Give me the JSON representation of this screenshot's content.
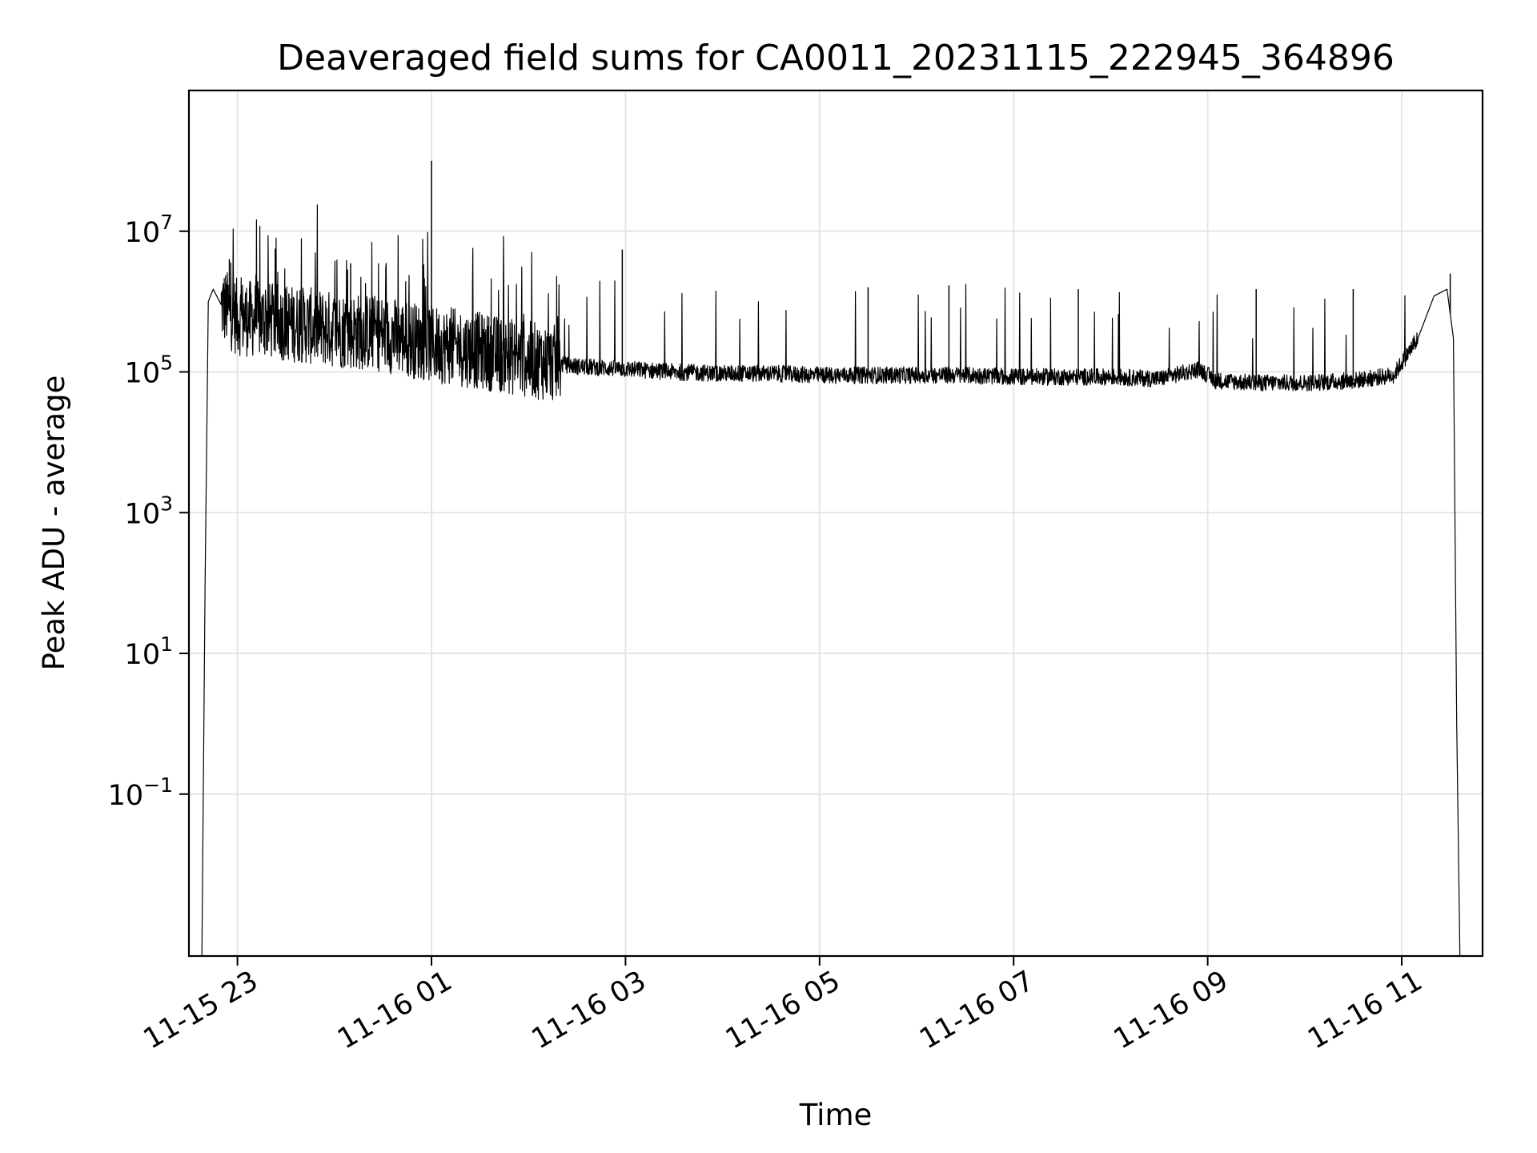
{
  "chart_data": {
    "type": "line",
    "title": "Deaveraged field sums for CA0011_20231115_222945_364896",
    "xlabel": "Time",
    "ylabel": "Peak ADU - average",
    "yscale": "log",
    "ylim": [
      0.0005,
      1000000000
    ],
    "xlim": [
      "2023-11-15 22:30",
      "2023-11-16 11:50"
    ],
    "grid": true,
    "line_color": "#000000",
    "grid_color": "#e5e5e5",
    "x_ticks": [
      {
        "value": "2023-11-15 23:00",
        "label": "11-15 23"
      },
      {
        "value": "2023-11-16 01:00",
        "label": "11-16 01"
      },
      {
        "value": "2023-11-16 03:00",
        "label": "11-16 03"
      },
      {
        "value": "2023-11-16 05:00",
        "label": "11-16 05"
      },
      {
        "value": "2023-11-16 07:00",
        "label": "11-16 07"
      },
      {
        "value": "2023-11-16 09:00",
        "label": "11-16 09"
      },
      {
        "value": "2023-11-16 11:00",
        "label": "11-16 11"
      }
    ],
    "y_ticks": [
      {
        "value": 0.1,
        "base": "10",
        "exp": "−1"
      },
      {
        "value": 10,
        "base": "10",
        "exp": "1"
      },
      {
        "value": 1000,
        "base": "10",
        "exp": "3"
      },
      {
        "value": 100000,
        "base": "10",
        "exp": "5"
      },
      {
        "value": 10000000,
        "base": "10",
        "exp": "7"
      }
    ],
    "series": [
      {
        "x": [
          "2023-11-15 22:38",
          "2023-11-15 22:40",
          "2023-11-15 22:42",
          "2023-11-15 22:45",
          "2023-11-15 22:50",
          "2023-11-15 23:00",
          "2023-11-15 23:30",
          "2023-11-16 00:00",
          "2023-11-16 00:30",
          "2023-11-16 01:00",
          "2023-11-16 01:30",
          "2023-11-16 02:00",
          "2023-11-16 02:30",
          "2023-11-16 03:00",
          "2023-11-16 03:30",
          "2023-11-16 04:00",
          "2023-11-16 04:30",
          "2023-11-16 05:00",
          "2023-11-16 05:30",
          "2023-11-16 06:00",
          "2023-11-16 06:30",
          "2023-11-16 07:00",
          "2023-11-16 07:30",
          "2023-11-16 08:00",
          "2023-11-16 08:30",
          "2023-11-16 08:55",
          "2023-11-16 09:05",
          "2023-11-16 09:30",
          "2023-11-16 10:00",
          "2023-11-16 10:30",
          "2023-11-16 10:55",
          "2023-11-16 11:10",
          "2023-11-16 11:20",
          "2023-11-16 11:28",
          "2023-11-16 11:32",
          "2023-11-16 11:34",
          "2023-11-16 11:36"
        ],
        "y": [
          0.0005,
          100,
          1000000,
          1500000,
          900000,
          600000,
          500000,
          400000,
          350000,
          250000,
          200000,
          150000,
          120000,
          110000,
          100000,
          95000,
          95000,
          90000,
          90000,
          90000,
          90000,
          85000,
          85000,
          85000,
          80000,
          110000,
          75000,
          70000,
          70000,
          75000,
          90000,
          300000,
          1200000,
          1500000,
          300000,
          1,
          0.0005
        ]
      }
    ],
    "spikes": [
      {
        "x": "2023-11-15 22:55",
        "y": 4000000
      },
      {
        "x": "2023-11-16 00:10",
        "y": 3500000
      },
      {
        "x": "2023-11-16 01:00",
        "y": 100000000
      },
      {
        "x": "2023-11-16 02:58",
        "y": 5500000
      },
      {
        "x": "2023-11-16 05:30",
        "y": 1600000
      },
      {
        "x": "2023-11-16 06:20",
        "y": 1700000
      },
      {
        "x": "2023-11-16 07:40",
        "y": 1500000
      },
      {
        "x": "2023-11-16 09:30",
        "y": 1500000
      },
      {
        "x": "2023-11-16 10:30",
        "y": 1500000
      },
      {
        "x": "2023-11-16 11:30",
        "y": 2500000
      }
    ]
  }
}
